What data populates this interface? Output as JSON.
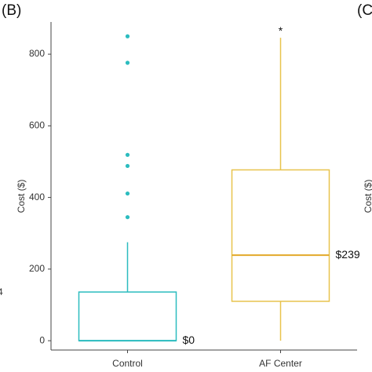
{
  "chart_data": {
    "type": "box",
    "panel_label": "(B)",
    "next_panel_label": "(C",
    "left_fragment": "4",
    "right_fragment": "Cost ($)",
    "y_label": "Cost ($)",
    "ylim": [
      -26,
      890
    ],
    "yticks": [
      0,
      200,
      400,
      600,
      800
    ],
    "grid": false,
    "categories": [
      "Control",
      "AF Center"
    ],
    "boxes": [
      {
        "color": "#2cbcbf",
        "median_color": "#2cbcbf",
        "min": 0,
        "q1": 0,
        "median": 0,
        "q3": 136,
        "max": 275,
        "outliers": [
          850,
          776,
          519,
          488,
          411,
          345
        ],
        "median_label": "$0"
      },
      {
        "color": "#e8c34c",
        "median_color": "#e2a92a",
        "min": 0,
        "q1": 110,
        "median": 239,
        "q3": 477,
        "max": 846,
        "outliers": [],
        "median_label": "$239",
        "annotation": "*"
      }
    ]
  }
}
